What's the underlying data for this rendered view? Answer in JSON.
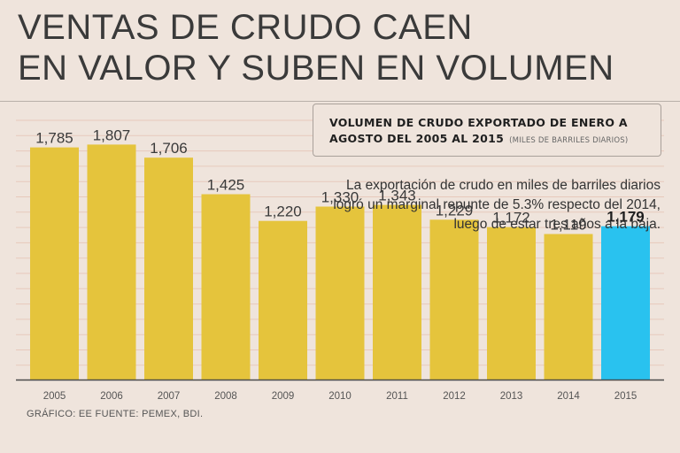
{
  "headline": {
    "line1": "VENTAS DE CRUDO CAEN",
    "line2": "EN VALOR Y SUBEN EN VOLUMEN"
  },
  "legend": {
    "line1": "VOLUMEN DE CRUDO EXPORTADO DE ENERO A",
    "line2": "AGOSTO DEL 2005 AL 2015",
    "unit": "(MILES DE BARRILES DIARIOS)"
  },
  "note": "La exportación de crudo en miles de barriles diarios logró un marginal repunte de 5.3% respecto del 2014, luego de estar tres años a la baja.",
  "footer": "GRÁFICO: EE FUENTE: PEMEX, BDI.",
  "colors": {
    "bar": "#e5c43c",
    "highlight": "#29c2ef",
    "gridline": "#e7c9bb",
    "axis": "#4a4a4a"
  },
  "chart_data": {
    "type": "bar",
    "title": "VOLUMEN DE CRUDO EXPORTADO DE ENERO A AGOSTO DEL 2005 AL 2015",
    "ylabel": "MILES DE BARRILES DIARIOS",
    "xlabel": "",
    "ylim": [
      0,
      1900
    ],
    "grid": true,
    "categories": [
      "2005",
      "2006",
      "2007",
      "2008",
      "2009",
      "2010",
      "2011",
      "2012",
      "2013",
      "2014",
      "2015"
    ],
    "values": [
      1785,
      1807,
      1706,
      1425,
      1220,
      1330,
      1343,
      1229,
      1172,
      1119,
      1179
    ],
    "value_labels": [
      "1,785",
      "1,807",
      "1,706",
      "1,425",
      "1,220",
      "1,330",
      "1,343",
      "1,229",
      "1,172",
      "1,119",
      "1,179"
    ],
    "highlight_category": "2015"
  }
}
